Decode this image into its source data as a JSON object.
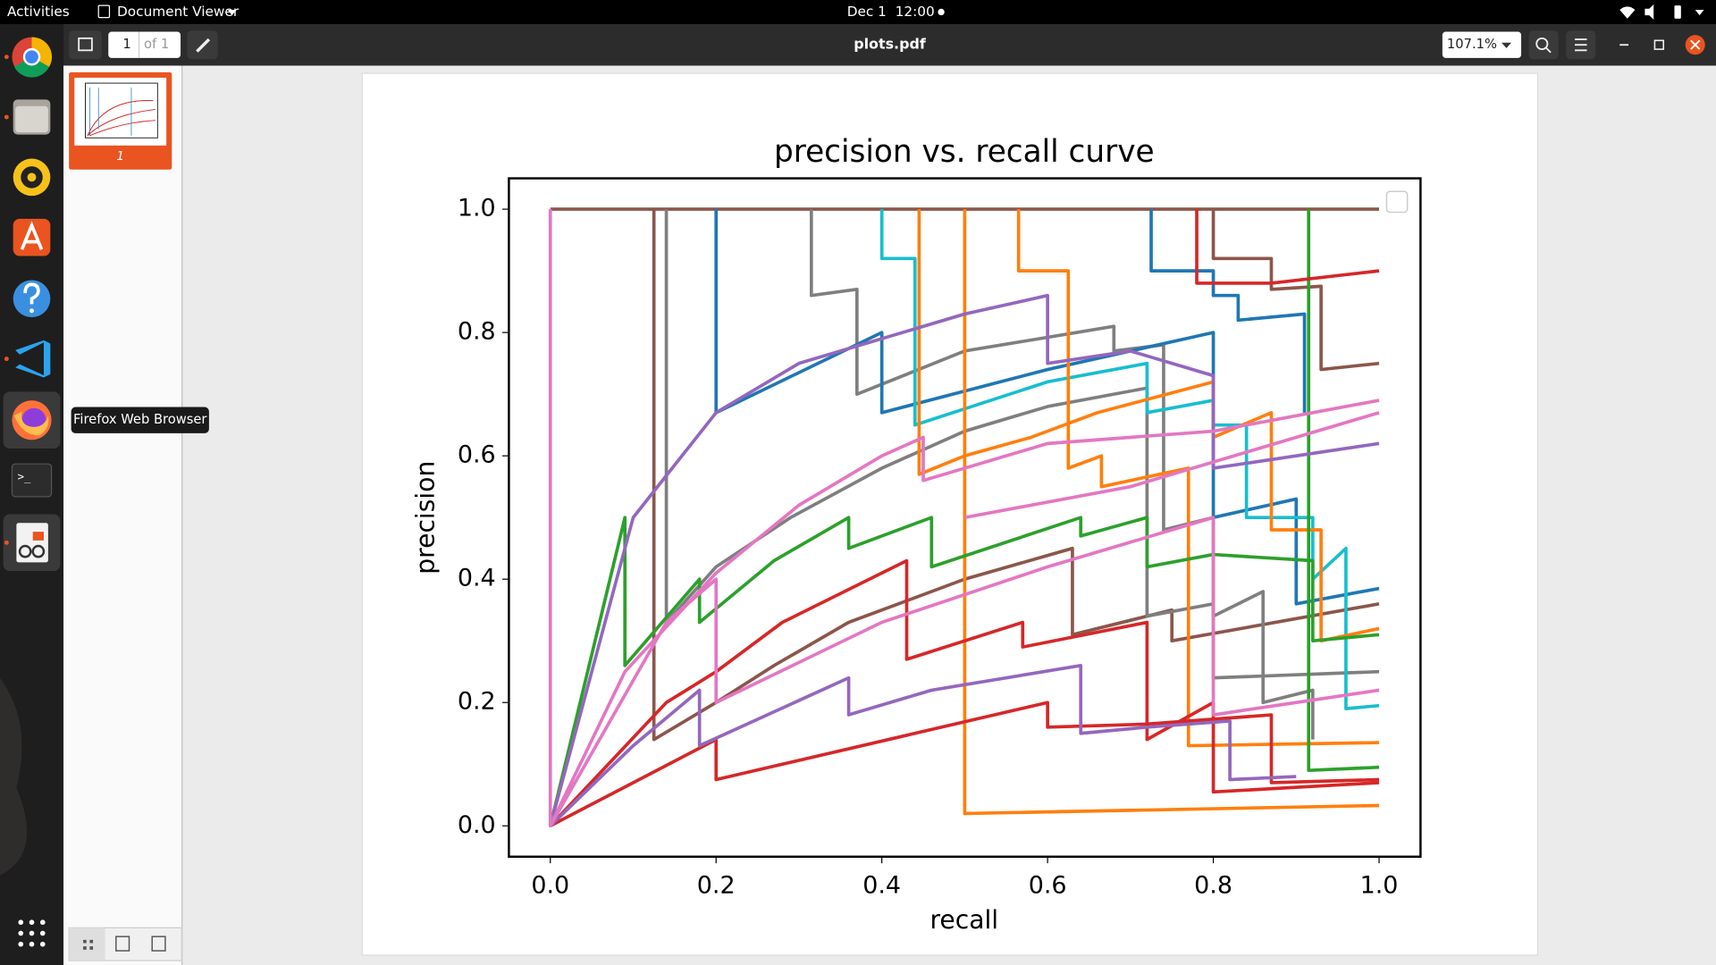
{
  "topbar": {
    "activities": "Activities",
    "app_menu": "Document Viewer",
    "clock": "Dec 1  12:00"
  },
  "toolbar": {
    "page_number": "1",
    "page_count": "of 1",
    "file_name": "plots.pdf",
    "zoom": "107.1%"
  },
  "sidebar": {
    "thumbnail_label": "1"
  },
  "tooltip": "Firefox Web Browser",
  "chart_data": {
    "type": "line",
    "title": "precision vs. recall curve",
    "x_label": "recall",
    "y_label": "precision",
    "xlim": [
      -0.05,
      1.05
    ],
    "ylim": [
      -0.05,
      1.05
    ],
    "xticks": [
      {
        "value": 0,
        "label": "0.0"
      },
      0.2,
      0.4,
      0.6,
      0.8,
      {
        "value": 1,
        "label": "1.0"
      }
    ],
    "yticks": [
      {
        "value": 0,
        "label": "0.0"
      },
      0.2,
      0.4,
      0.6,
      0.8,
      {
        "value": 1,
        "label": "1.0"
      }
    ],
    "legend": "upper right",
    "series": [
      {
        "color": "#8c564b",
        "x": [
          0,
          1
        ],
        "values": [
          1,
          1
        ]
      },
      {
        "color": "#8c564b",
        "x": [
          0.125,
          0.125,
          0.2,
          0.27,
          0.36,
          0.5,
          0.63,
          0.63,
          0.75,
          0.75,
          1.0
        ],
        "values": [
          1,
          0.14,
          0.2,
          0.26,
          0.33,
          0.4,
          0.45,
          0.31,
          0.35,
          0.3,
          0.36
        ]
      },
      {
        "color": "#8c564b",
        "x": [
          0.8,
          0.8,
          0.87,
          0.87,
          0.93,
          0.93,
          1.0
        ],
        "values": [
          1,
          0.92,
          0.92,
          0.87,
          0.875,
          0.74,
          0.75
        ]
      },
      {
        "color": "#7f7f7f",
        "x": [
          0.14,
          0.14,
          0.2,
          0.29,
          0.4,
          0.5,
          0.6,
          0.72,
          0.72,
          0.8,
          0.8,
          1.0
        ],
        "values": [
          1,
          0.33,
          0.42,
          0.5,
          0.58,
          0.64,
          0.68,
          0.71,
          0.34,
          0.36,
          0.24,
          0.25
        ]
      },
      {
        "color": "#7f7f7f",
        "x": [
          0.315,
          0.315,
          0.37,
          0.37,
          0.5,
          0.68,
          0.68,
          0.74,
          0.74,
          0.8,
          0.8,
          0.86,
          0.86,
          0.92,
          0.92
        ],
        "values": [
          1,
          0.86,
          0.87,
          0.7,
          0.77,
          0.81,
          0.77,
          0.78,
          0.48,
          0.5,
          0.34,
          0.38,
          0.2,
          0.22,
          0.14
        ]
      },
      {
        "color": "#1f77b4",
        "x": [
          0.2,
          0.2,
          0.4,
          0.4,
          0.6,
          0.8,
          0.8,
          0.9,
          0.9,
          1.0
        ],
        "values": [
          1,
          0.67,
          0.8,
          0.67,
          0.74,
          0.8,
          0.5,
          0.53,
          0.36,
          0.385
        ]
      },
      {
        "color": "#1f77b4",
        "x": [
          0.725,
          0.725,
          0.8,
          0.8,
          0.83,
          0.83,
          0.91,
          0.91
        ],
        "values": [
          1,
          0.9,
          0.9,
          0.86,
          0.86,
          0.82,
          0.83,
          0.67
        ]
      },
      {
        "color": "#17becf",
        "x": [
          0.4,
          0.4,
          0.44,
          0.44,
          0.6,
          0.72,
          0.72,
          0.8,
          0.8,
          0.84,
          0.84,
          0.92,
          0.92,
          0.96,
          0.96,
          1.0
        ],
        "values": [
          1,
          0.92,
          0.92,
          0.65,
          0.72,
          0.75,
          0.67,
          0.69,
          0.65,
          0.65,
          0.5,
          0.5,
          0.4,
          0.45,
          0.19,
          0.195
        ]
      },
      {
        "color": "#ff7f0e",
        "x": [
          0.445,
          0.445,
          0.5,
          0.58,
          0.66,
          0.8,
          0.8,
          0.87,
          0.87,
          0.93,
          0.93,
          1.0
        ],
        "values": [
          1,
          0.57,
          0.6,
          0.63,
          0.67,
          0.72,
          0.63,
          0.67,
          0.48,
          0.48,
          0.3,
          0.32
        ]
      },
      {
        "color": "#ff7f0e",
        "x": [
          0.565,
          0.565,
          0.625,
          0.625,
          0.665,
          0.665,
          0.77,
          0.77,
          1.0
        ],
        "values": [
          1,
          0.9,
          0.9,
          0.58,
          0.6,
          0.55,
          0.58,
          0.13,
          0.135
        ]
      },
      {
        "color": "#ff7f0e",
        "x": [
          0.5,
          0.5,
          1.0
        ],
        "values": [
          1,
          0.02,
          0.033
        ]
      },
      {
        "color": "#2ca02c",
        "x": [
          0,
          0.09,
          0.09,
          0.18,
          0.18,
          0.27,
          0.36,
          0.36,
          0.46,
          0.46,
          0.64,
          0.64,
          0.72,
          0.72,
          0.8,
          0.92,
          0.92,
          1.0
        ],
        "values": [
          0,
          0.5,
          0.26,
          0.4,
          0.33,
          0.43,
          0.5,
          0.45,
          0.5,
          0.42,
          0.5,
          0.47,
          0.5,
          0.42,
          0.44,
          0.43,
          0.3,
          0.31
        ]
      },
      {
        "color": "#2ca02c",
        "x": [
          0.915,
          0.915,
          1.0
        ],
        "values": [
          1,
          0.09,
          0.095
        ]
      },
      {
        "color": "#d62728",
        "x": [
          0,
          0.14,
          0.2,
          0.28,
          0.43,
          0.43,
          0.57,
          0.57,
          0.72,
          0.72,
          0.8,
          0.8,
          1.0
        ],
        "values": [
          0,
          0.2,
          0.25,
          0.33,
          0.43,
          0.27,
          0.33,
          0.29,
          0.33,
          0.14,
          0.2,
          0.055,
          0.07
        ]
      },
      {
        "color": "#d62728",
        "x": [
          0,
          0.2,
          0.2,
          0.6,
          0.6,
          0.72,
          0.87,
          0.87,
          1.0
        ],
        "values": [
          0,
          0.14,
          0.075,
          0.2,
          0.16,
          0.165,
          0.18,
          0.07,
          0.075
        ]
      },
      {
        "color": "#d62728",
        "x": [
          0.78,
          0.78,
          0.87,
          1.0
        ],
        "values": [
          1,
          0.88,
          0.88,
          0.9
        ]
      },
      {
        "color": "#9467bd",
        "x": [
          0,
          0.1,
          0.2,
          0.3,
          0.5,
          0.6,
          0.6,
          0.7,
          0.8,
          0.8,
          1.0
        ],
        "values": [
          0,
          0.5,
          0.67,
          0.75,
          0.83,
          0.86,
          0.75,
          0.77,
          0.73,
          0.58,
          0.62
        ]
      },
      {
        "color": "#9467bd",
        "x": [
          0,
          0.1,
          0.18,
          0.18,
          0.36,
          0.36,
          0.46,
          0.55,
          0.64,
          0.64,
          0.72,
          0.82,
          0.82,
          0.9
        ],
        "values": [
          0,
          0.13,
          0.22,
          0.13,
          0.24,
          0.18,
          0.22,
          0.24,
          0.26,
          0.15,
          0.16,
          0.17,
          0.075,
          0.08
        ]
      },
      {
        "color": "#e377c2",
        "x": [
          0,
          0,
          0.09,
          0.2,
          0.3,
          0.4,
          0.45,
          0.45,
          0.6,
          0.8,
          1.0
        ],
        "values": [
          1,
          0,
          0.25,
          0.41,
          0.52,
          0.6,
          0.63,
          0.56,
          0.62,
          0.64,
          0.69
        ]
      },
      {
        "color": "#e377c2",
        "x": [
          0,
          0.14,
          0.2,
          0.2,
          0.4,
          0.6,
          0.8,
          0.8,
          1.0
        ],
        "values": [
          0,
          0.33,
          0.4,
          0.2,
          0.33,
          0.42,
          0.5,
          0.18,
          0.22
        ]
      },
      {
        "color": "#e377c2",
        "x": [
          0.5,
          0.7,
          1.0
        ],
        "values": [
          0.5,
          0.55,
          0.67
        ]
      }
    ]
  }
}
